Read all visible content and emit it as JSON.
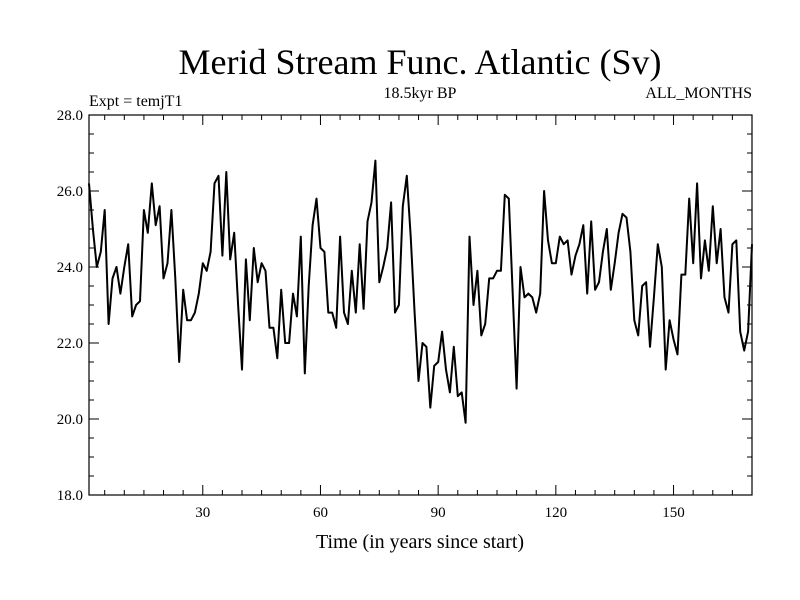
{
  "chart_data": {
    "type": "line",
    "title": "Merid Stream Func. Atlantic (Sv)",
    "left_label": "Expt = temjT1",
    "center_label": "18.5kyr BP",
    "right_label": "ALL_MONTHS",
    "xlabel": "Time (in years since start)",
    "ylabel": "",
    "xlim": [
      1,
      170
    ],
    "ylim": [
      18.0,
      28.0
    ],
    "x_ticks": [
      30,
      60,
      90,
      120,
      150
    ],
    "x_tick_labels": [
      "30",
      "60",
      "90",
      "120",
      "150"
    ],
    "y_ticks": [
      18.0,
      20.0,
      22.0,
      24.0,
      26.0,
      28.0
    ],
    "y_tick_labels": [
      "18.0",
      "20.0",
      "22.0",
      "24.0",
      "26.0",
      "28.0"
    ],
    "series": [
      {
        "name": "Merid Stream Func. Atlantic",
        "color": "#000000",
        "values": [
          26.2,
          25.0,
          24.0,
          24.4,
          25.5,
          22.5,
          23.7,
          24.0,
          23.3,
          24.0,
          24.6,
          22.7,
          23.0,
          23.1,
          25.5,
          24.9,
          26.2,
          25.1,
          25.6,
          23.7,
          24.1,
          25.5,
          23.7,
          21.5,
          23.4,
          22.6,
          22.6,
          22.8,
          23.3,
          24.1,
          23.9,
          24.4,
          26.2,
          26.4,
          24.3,
          26.5,
          24.2,
          24.9,
          23.0,
          21.3,
          24.2,
          22.6,
          24.5,
          23.6,
          24.1,
          23.9,
          22.4,
          22.4,
          21.6,
          23.4,
          22.0,
          22.0,
          23.3,
          22.7,
          24.8,
          21.2,
          23.5,
          25.1,
          25.8,
          24.5,
          24.4,
          22.8,
          22.8,
          22.4,
          24.8,
          22.8,
          22.5,
          23.9,
          22.8,
          24.6,
          22.9,
          25.2,
          25.7,
          26.8,
          23.6,
          24.0,
          24.5,
          25.7,
          22.8,
          23.0,
          25.6,
          26.4,
          24.8,
          22.8,
          21.0,
          22.0,
          21.9,
          20.3,
          21.4,
          21.5,
          22.3,
          21.3,
          20.7,
          21.9,
          20.6,
          20.7,
          19.9,
          24.8,
          23.0,
          23.9,
          22.2,
          22.5,
          23.7,
          23.7,
          23.9,
          23.9,
          25.9,
          25.8,
          23.3,
          20.8,
          24.0,
          23.2,
          23.3,
          23.2,
          22.8,
          23.3,
          26.0,
          24.7,
          24.1,
          24.1,
          24.8,
          24.6,
          24.7,
          23.8,
          24.3,
          24.6,
          25.1,
          23.3,
          25.2,
          23.4,
          23.6,
          24.4,
          25.0,
          23.4,
          24.1,
          24.9,
          25.4,
          25.3,
          24.4,
          22.6,
          22.2,
          23.5,
          23.6,
          21.9,
          23.2,
          24.6,
          24.0,
          21.3,
          22.6,
          22.1,
          21.7,
          23.8,
          23.8,
          25.8,
          24.1,
          26.2,
          23.7,
          24.7,
          23.9,
          25.6,
          24.1,
          25.0,
          23.2,
          22.8,
          24.6,
          24.7,
          22.3,
          21.8,
          22.3,
          24.6
        ]
      }
    ]
  }
}
